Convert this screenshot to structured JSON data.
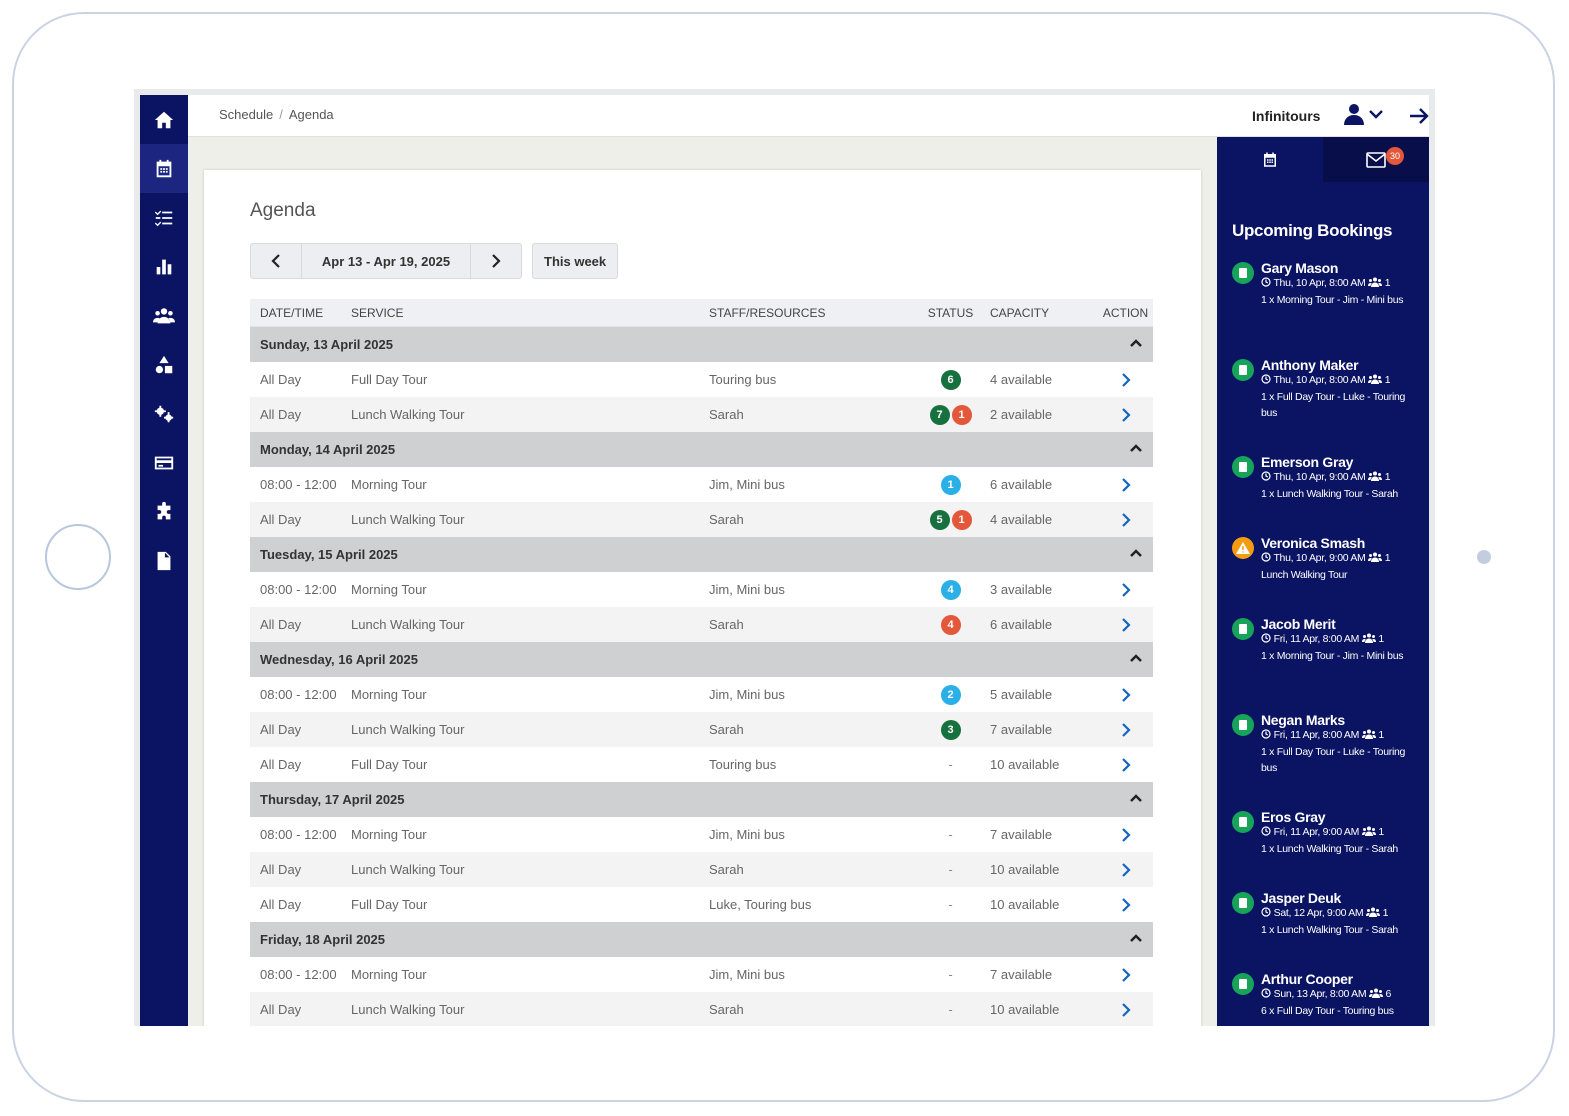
{
  "breadcrumb": [
    "Schedule",
    "Agenda"
  ],
  "brand": "Infinitours",
  "page_title": "Agenda",
  "week_range": "Apr 13 - Apr 19, 2025",
  "this_week_label": "This week",
  "columns": [
    "DATE/TIME",
    "SERVICE",
    "STAFF/RESOURCES",
    "STATUS",
    "CAPACITY",
    "ACTION"
  ],
  "days": [
    {
      "label": "Sunday, 13 April 2025",
      "rows": [
        {
          "time": "All Day",
          "service": "Full Day Tour",
          "staff": "Touring bus",
          "status": [
            {
              "n": "6",
              "color": "green"
            }
          ],
          "capacity": "4 available"
        },
        {
          "time": "All Day",
          "service": "Lunch Walking Tour",
          "staff": "Sarah",
          "status": [
            {
              "n": "7",
              "color": "green"
            },
            {
              "n": "1",
              "color": "red"
            }
          ],
          "capacity": "2 available"
        }
      ]
    },
    {
      "label": "Monday, 14 April 2025",
      "rows": [
        {
          "time": "08:00 - 12:00",
          "service": "Morning Tour",
          "staff": "Jim, Mini bus",
          "status": [
            {
              "n": "1",
              "color": "blue"
            }
          ],
          "capacity": "6 available"
        },
        {
          "time": "All Day",
          "service": "Lunch Walking Tour",
          "staff": "Sarah",
          "status": [
            {
              "n": "5",
              "color": "green"
            },
            {
              "n": "1",
              "color": "red"
            }
          ],
          "capacity": "4 available"
        }
      ]
    },
    {
      "label": "Tuesday, 15 April 2025",
      "rows": [
        {
          "time": "08:00 - 12:00",
          "service": "Morning Tour",
          "staff": "Jim, Mini bus",
          "status": [
            {
              "n": "4",
              "color": "blue"
            }
          ],
          "capacity": "3 available"
        },
        {
          "time": "All Day",
          "service": "Lunch Walking Tour",
          "staff": "Sarah",
          "status": [
            {
              "n": "4",
              "color": "red"
            }
          ],
          "capacity": "6 available"
        }
      ]
    },
    {
      "label": "Wednesday, 16 April 2025",
      "rows": [
        {
          "time": "08:00 - 12:00",
          "service": "Morning Tour",
          "staff": "Jim, Mini bus",
          "status": [
            {
              "n": "2",
              "color": "blue"
            }
          ],
          "capacity": "5 available"
        },
        {
          "time": "All Day",
          "service": "Lunch Walking Tour",
          "staff": "Sarah",
          "status": [
            {
              "n": "3",
              "color": "green"
            }
          ],
          "capacity": "7 available"
        },
        {
          "time": "All Day",
          "service": "Full Day Tour",
          "staff": "Touring bus",
          "status": [],
          "capacity": "10 available"
        }
      ]
    },
    {
      "label": "Thursday, 17 April 2025",
      "rows": [
        {
          "time": "08:00 - 12:00",
          "service": "Morning Tour",
          "staff": "Jim, Mini bus",
          "status": [],
          "capacity": "7 available"
        },
        {
          "time": "All Day",
          "service": "Lunch Walking Tour",
          "staff": "Sarah",
          "status": [],
          "capacity": "10 available"
        },
        {
          "time": "All Day",
          "service": "Full Day Tour",
          "staff": "Luke, Touring bus",
          "status": [],
          "capacity": "10 available"
        }
      ]
    },
    {
      "label": "Friday, 18 April 2025",
      "rows": [
        {
          "time": "08:00 - 12:00",
          "service": "Morning Tour",
          "staff": "Jim, Mini bus",
          "status": [],
          "capacity": "7 available"
        },
        {
          "time": "All Day",
          "service": "Lunch Walking Tour",
          "staff": "Sarah",
          "status": [],
          "capacity": "10 available"
        }
      ]
    }
  ],
  "empty_status": "-",
  "badge_colors": {
    "green": "#17713f",
    "red": "#e3573a",
    "blue": "#2ab0e6"
  },
  "mail_count": "30",
  "upcoming_title": "Upcoming Bookings",
  "bookings": [
    {
      "name": "Gary Mason",
      "when": "Thu, 10 Apr, 8:00 AM",
      "pax": "1",
      "desc": "1 x Morning Tour - Jim - Mini bus",
      "icon": "check"
    },
    {
      "name": "Anthony Maker",
      "when": "Thu, 10 Apr, 8:00 AM",
      "pax": "1",
      "desc": "1 x Full Day Tour - Luke - Touring bus",
      "icon": "check"
    },
    {
      "name": "Emerson Gray",
      "when": "Thu, 10 Apr, 9:00 AM",
      "pax": "1",
      "desc": "1 x Lunch Walking Tour - Sarah",
      "icon": "check"
    },
    {
      "name": "Veronica Smash",
      "when": "Thu, 10 Apr, 9:00 AM",
      "pax": "1",
      "desc": "Lunch Walking Tour",
      "icon": "warning"
    },
    {
      "name": "Jacob Merit",
      "when": "Fri, 11 Apr, 8:00 AM",
      "pax": "1",
      "desc": "1 x Morning Tour - Jim - Mini bus",
      "icon": "check"
    },
    {
      "name": "Negan Marks",
      "when": "Fri, 11 Apr, 8:00 AM",
      "pax": "1",
      "desc": "1 x Full Day Tour - Luke - Touring bus",
      "icon": "check"
    },
    {
      "name": "Eros Gray",
      "when": "Fri, 11 Apr, 9:00 AM",
      "pax": "1",
      "desc": "1 x Lunch Walking Tour - Sarah",
      "icon": "check"
    },
    {
      "name": "Jasper Deuk",
      "when": "Sat, 12 Apr, 9:00 AM",
      "pax": "1",
      "desc": "1 x Lunch Walking Tour - Sarah",
      "icon": "check"
    },
    {
      "name": "Arthur Cooper",
      "when": "Sun, 13 Apr, 8:00 AM",
      "pax": "6",
      "desc": "6 x Full Day Tour - Touring bus",
      "icon": "check"
    }
  ],
  "sidebar_icons": [
    "home-icon",
    "calendar-icon",
    "checklist-icon",
    "chart-icon",
    "users-icon",
    "shapes-icon",
    "cogs-icon",
    "credit-card-icon",
    "puzzle-icon",
    "document-icon"
  ]
}
